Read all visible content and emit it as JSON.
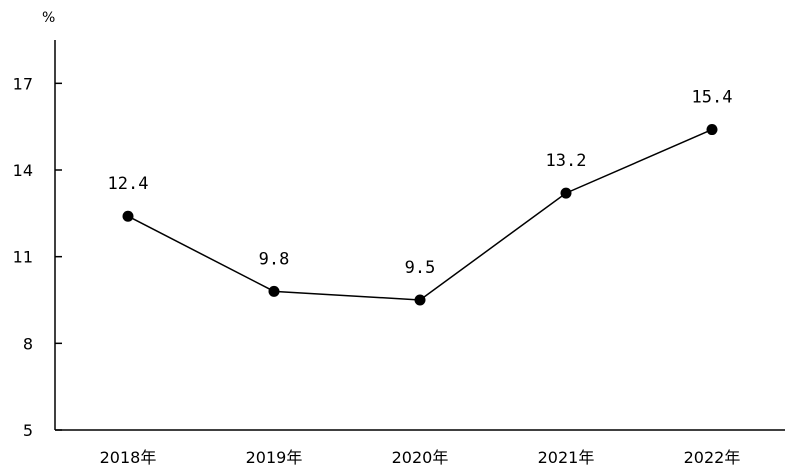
{
  "chart_data": {
    "type": "line",
    "title": "",
    "xlabel": "",
    "ylabel": "%",
    "categories": [
      "2018年",
      "2019年",
      "2020年",
      "2021年",
      "2022年"
    ],
    "series": [
      {
        "values": [
          12.4,
          9.8,
          9.5,
          13.2,
          15.4
        ]
      }
    ],
    "data_labels": [
      "12.4",
      "9.8",
      "9.5",
      "13.2",
      "15.4"
    ],
    "yticks": [
      5,
      8,
      11,
      14,
      17
    ],
    "ylim": [
      5,
      18.5
    ],
    "grid": false,
    "legend": "none",
    "colors": {
      "line": "#000000",
      "marker": "#000000"
    }
  }
}
